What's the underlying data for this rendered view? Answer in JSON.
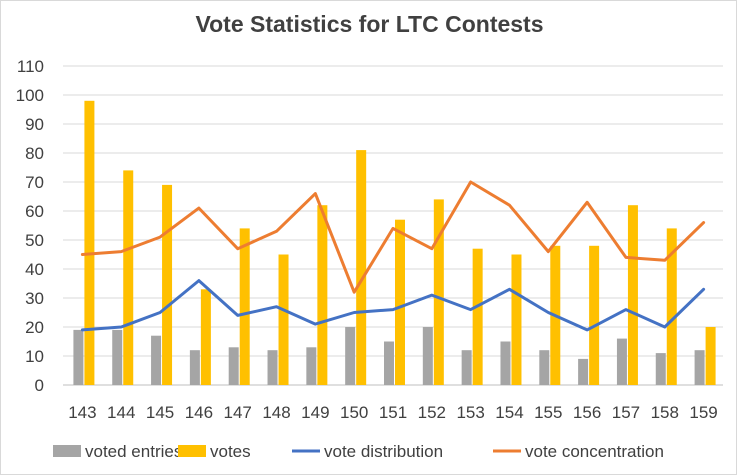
{
  "chart_data": {
    "type": "bar",
    "title": "Vote Statistics for LTC Contests",
    "categories": [
      "143",
      "144",
      "145",
      "146",
      "147",
      "148",
      "149",
      "150",
      "151",
      "152",
      "153",
      "154",
      "155",
      "156",
      "157",
      "158",
      "159"
    ],
    "ylim": [
      0,
      110
    ],
    "yticks": [
      0,
      10,
      20,
      30,
      40,
      50,
      60,
      70,
      80,
      90,
      100,
      110
    ],
    "grid": true,
    "legend_position": "bottom",
    "series": [
      {
        "name": "voted entries",
        "kind": "bar",
        "color": "#a5a5a5",
        "values": [
          19,
          19,
          17,
          12,
          13,
          12,
          13,
          20,
          15,
          20,
          12,
          15,
          12,
          9,
          16,
          11,
          12
        ]
      },
      {
        "name": "votes",
        "kind": "bar",
        "color": "#ffc000",
        "values": [
          98,
          74,
          69,
          33,
          54,
          45,
          62,
          81,
          57,
          64,
          47,
          45,
          48,
          48,
          62,
          54,
          20
        ]
      },
      {
        "name": "vote distribution",
        "kind": "line",
        "color": "#4472c4",
        "values": [
          19,
          20,
          25,
          36,
          24,
          27,
          21,
          25,
          26,
          31,
          26,
          33,
          25,
          19,
          26,
          20,
          33
        ]
      },
      {
        "name": "vote concentration",
        "kind": "line",
        "color": "#ed7d31",
        "values": [
          45,
          46,
          51,
          61,
          47,
          53,
          66,
          32,
          54,
          47,
          70,
          62,
          46,
          63,
          44,
          43,
          56
        ]
      }
    ]
  }
}
